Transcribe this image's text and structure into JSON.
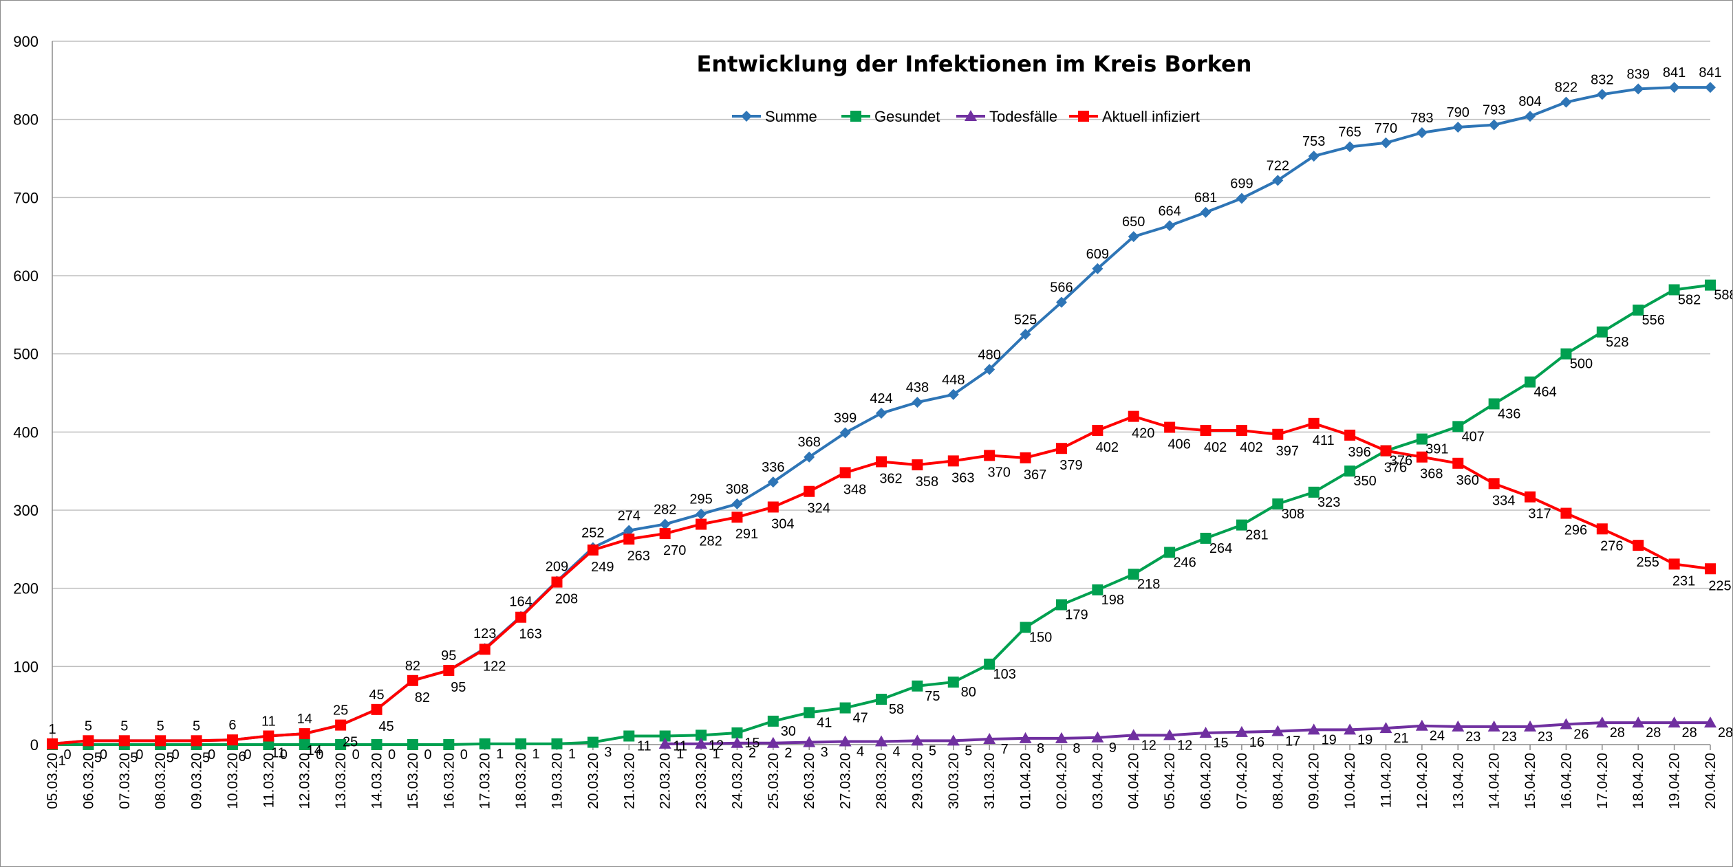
{
  "chart_data": {
    "type": "line",
    "title": "Entwicklung der Infektionen im Kreis Borken",
    "xlabel": "",
    "ylabel": "",
    "ylim": [
      0,
      900
    ],
    "yticks": [
      "0",
      "100",
      "200",
      "300",
      "400",
      "500",
      "600",
      "700",
      "800",
      "900"
    ],
    "grid": "horizontal",
    "legend_position": "top-center",
    "categories": [
      "05.03.20",
      "06.03.20",
      "07.03.20",
      "08.03.20",
      "09.03.20",
      "10.03.20",
      "11.03.20",
      "12.03.20",
      "13.03.20",
      "14.03.20",
      "15.03.20",
      "16.03.20",
      "17.03.20",
      "18.03.20",
      "19.03.20",
      "20.03.20",
      "21.03.20",
      "22.03.20",
      "23.03.20",
      "24.03.20",
      "25.03.20",
      "26.03.20",
      "27.03.20",
      "28.03.20",
      "29.03.20",
      "30.03.20",
      "31.03.20",
      "01.04.20",
      "02.04.20",
      "03.04.20",
      "04.04.20",
      "05.04.20",
      "06.04.20",
      "07.04.20",
      "08.04.20",
      "09.04.20",
      "10.04.20",
      "11.04.20",
      "12.04.20",
      "13.04.20",
      "14.04.20",
      "15.04.20",
      "16.04.20",
      "17.04.20",
      "18.04.20",
      "19.04.20",
      "20.04.20"
    ],
    "series": [
      {
        "name": "Summe",
        "color": "#2e75b6",
        "marker": "diamond",
        "values": [
          1,
          5,
          5,
          5,
          5,
          6,
          11,
          14,
          25,
          45,
          82,
          95,
          123,
          164,
          209,
          252,
          274,
          282,
          295,
          308,
          336,
          368,
          399,
          424,
          438,
          448,
          480,
          525,
          566,
          609,
          650,
          664,
          681,
          699,
          722,
          753,
          765,
          770,
          783,
          790,
          793,
          804,
          822,
          832,
          839,
          841,
          841
        ],
        "labels": [
          "1",
          "5",
          "5",
          "5",
          "5",
          "6",
          "11",
          "14",
          "25",
          "45",
          "82",
          "95",
          "123",
          "164",
          "209",
          "252",
          "274",
          "282",
          "295",
          "308",
          "336",
          "368",
          "399",
          "424",
          "438",
          "448",
          "480",
          "525",
          "566",
          "609",
          "650",
          "664",
          "681",
          "699",
          "722",
          "753",
          "765",
          "770",
          "783",
          "790",
          "793",
          "804",
          "822",
          "832",
          "839",
          "841",
          "841"
        ]
      },
      {
        "name": "Gesundet",
        "color": "#00a050",
        "marker": "square",
        "values": [
          0,
          0,
          0,
          0,
          0,
          0,
          0,
          0,
          0,
          0,
          0,
          0,
          1,
          1,
          1,
          3,
          11,
          11,
          12,
          15,
          30,
          41,
          47,
          58,
          75,
          80,
          103,
          150,
          179,
          198,
          218,
          246,
          264,
          281,
          308,
          323,
          350,
          376,
          391,
          407,
          436,
          464,
          500,
          528,
          556,
          582,
          588
        ],
        "labels": [
          "0",
          "0",
          "0",
          "0",
          "0",
          "0",
          "0",
          "0",
          "0",
          "0",
          "0",
          "0",
          "1",
          "1",
          "1",
          "3",
          "11",
          "11",
          "12",
          "15",
          "30",
          "41",
          "47",
          "58",
          "75",
          "80",
          "103",
          "150",
          "179",
          "198",
          "218",
          "246",
          "264",
          "281",
          "308",
          "323",
          "350",
          "376",
          "391",
          "407",
          "436",
          "464",
          "500",
          "528",
          "556",
          "582",
          "588"
        ]
      },
      {
        "name": "Todesfälle",
        "color": "#7030a0",
        "marker": "triangle",
        "values": [
          null,
          null,
          null,
          null,
          null,
          null,
          null,
          null,
          null,
          null,
          null,
          null,
          null,
          null,
          null,
          null,
          null,
          1,
          1,
          2,
          2,
          3,
          4,
          4,
          5,
          5,
          7,
          8,
          8,
          9,
          12,
          12,
          15,
          16,
          17,
          19,
          19,
          21,
          24,
          23,
          23,
          23,
          26,
          28,
          28,
          28,
          28
        ],
        "labels": [
          "",
          "",
          "",
          "",
          "",
          "",
          "",
          "",
          "",
          "",
          "",
          "",
          "",
          "",
          "",
          "",
          "",
          "1",
          "1",
          "2",
          "2",
          "3",
          "4",
          "4",
          "5",
          "5",
          "7",
          "8",
          "8",
          "9",
          "12",
          "12",
          "15",
          "16",
          "17",
          "19",
          "19",
          "21",
          "24",
          "23",
          "23",
          "23",
          "26",
          "28",
          "28",
          "28",
          "28"
        ]
      },
      {
        "name": "Aktuell infiziert",
        "color": "#ff0000",
        "marker": "square",
        "values": [
          1,
          5,
          5,
          5,
          5,
          6,
          11,
          14,
          25,
          45,
          82,
          95,
          122,
          163,
          208,
          249,
          263,
          270,
          282,
          291,
          304,
          324,
          348,
          362,
          358,
          363,
          370,
          367,
          379,
          402,
          420,
          406,
          402,
          402,
          397,
          411,
          396,
          376,
          368,
          360,
          334,
          317,
          296,
          276,
          255,
          231,
          225
        ],
        "labels": [
          "1",
          "5",
          "5",
          "5",
          "5",
          "6",
          "11",
          "14",
          "25",
          "45",
          "82",
          "95",
          "122",
          "163",
          "208",
          "249",
          "263",
          "270",
          "282",
          "291",
          "304",
          "324",
          "348",
          "362",
          "358",
          "363",
          "370",
          "367",
          "379",
          "402",
          "420",
          "406",
          "402",
          "402",
          "397",
          "411",
          "396",
          "376",
          "368",
          "360",
          "334",
          "317",
          "296",
          "276",
          "255",
          "231",
          "225"
        ]
      }
    ]
  }
}
